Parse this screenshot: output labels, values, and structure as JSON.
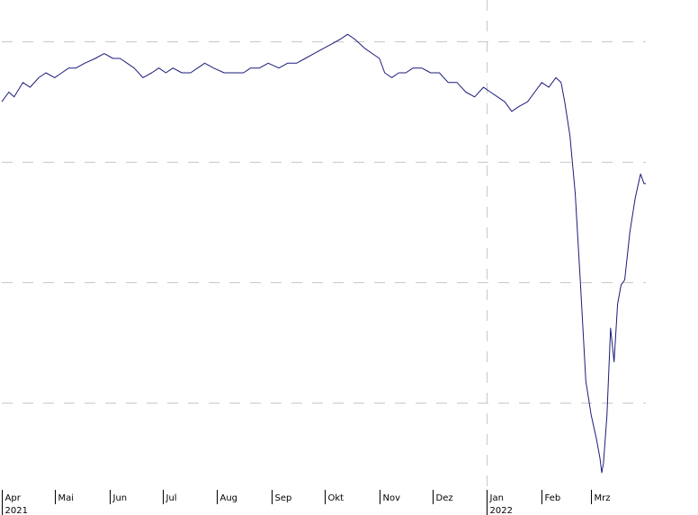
{
  "chart_data": {
    "type": "line",
    "title": "",
    "xlabel": "",
    "ylabel": "",
    "grid": true,
    "x_axis": {
      "ticks": [
        {
          "label": "Apr",
          "date": "2021-04-01"
        },
        {
          "label": "Mai",
          "date": "2021-05-01"
        },
        {
          "label": "Jun",
          "date": "2021-06-01"
        },
        {
          "label": "Jul",
          "date": "2021-07-01"
        },
        {
          "label": "Aug",
          "date": "2021-08-01"
        },
        {
          "label": "Sep",
          "date": "2021-09-01"
        },
        {
          "label": "Okt",
          "date": "2021-10-01"
        },
        {
          "label": "Nov",
          "date": "2021-11-01"
        },
        {
          "label": "Dez",
          "date": "2021-12-01"
        },
        {
          "label": "Jan",
          "date": "2022-01-01"
        },
        {
          "label": "Feb",
          "date": "2022-02-01"
        },
        {
          "label": "Mrz",
          "date": "2022-03-01"
        }
      ],
      "year_labels": [
        {
          "label": "2021",
          "date": "2021-04-01"
        },
        {
          "label": "2022",
          "date": "2022-01-01"
        }
      ],
      "range": [
        "2021-04-01",
        "2022-04-01"
      ]
    },
    "y_axis": {
      "labels_visible": false,
      "range": [
        0,
        100
      ],
      "gridlines": [
        17.5,
        42.5,
        67.5,
        92.5
      ]
    },
    "series": [
      {
        "color": "#1c1c7a",
        "x": [
          "2021-04-01",
          "2021-04-05",
          "2021-04-08",
          "2021-04-13",
          "2021-04-17",
          "2021-04-22",
          "2021-04-26",
          "2021-05-01",
          "2021-05-05",
          "2021-05-09",
          "2021-05-13",
          "2021-05-18",
          "2021-05-24",
          "2021-05-29",
          "2021-06-03",
          "2021-06-07",
          "2021-06-11",
          "2021-06-15",
          "2021-06-20",
          "2021-06-25",
          "2021-06-29",
          "2021-07-03",
          "2021-07-07",
          "2021-07-12",
          "2021-07-17",
          "2021-07-21",
          "2021-07-25",
          "2021-07-30",
          "2021-08-05",
          "2021-08-10",
          "2021-08-16",
          "2021-08-20",
          "2021-08-25",
          "2021-08-30",
          "2021-09-05",
          "2021-09-10",
          "2021-09-15",
          "2021-09-20",
          "2021-09-25",
          "2021-09-30",
          "2021-10-05",
          "2021-10-10",
          "2021-10-14",
          "2021-10-18",
          "2021-10-21",
          "2021-10-24",
          "2021-10-28",
          "2021-11-01",
          "2021-11-04",
          "2021-11-08",
          "2021-11-12",
          "2021-11-16",
          "2021-11-20",
          "2021-11-25",
          "2021-11-30",
          "2021-12-05",
          "2021-12-10",
          "2021-12-15",
          "2021-12-20",
          "2021-12-25",
          "2021-12-30",
          "2022-01-03",
          "2022-01-07",
          "2022-01-11",
          "2022-01-15",
          "2022-01-19",
          "2022-01-24",
          "2022-01-28",
          "2022-02-01",
          "2022-02-05",
          "2022-02-09",
          "2022-02-12",
          "2022-02-14",
          "2022-02-17",
          "2022-02-20",
          "2022-02-23",
          "2022-02-26",
          "2022-03-01",
          "2022-03-04",
          "2022-03-06",
          "2022-03-07",
          "2022-03-08",
          "2022-03-10",
          "2022-03-12",
          "2022-03-14",
          "2022-03-16",
          "2022-03-18",
          "2022-03-20",
          "2022-03-23",
          "2022-03-26",
          "2022-03-29",
          "2022-03-31",
          "2022-04-01"
        ],
        "y": [
          80,
          82,
          81,
          84,
          83,
          85,
          86,
          85,
          86,
          87,
          87,
          88,
          89,
          90,
          89,
          89,
          88,
          87,
          85,
          86,
          87,
          86,
          87,
          86,
          86,
          87,
          88,
          87,
          86,
          86,
          86,
          87,
          87,
          88,
          87,
          88,
          88,
          89,
          90,
          91,
          92,
          93,
          94,
          93,
          92,
          91,
          90,
          89,
          86,
          85,
          86,
          86,
          87,
          87,
          86,
          86,
          84,
          84,
          82,
          81,
          83,
          82,
          81,
          80,
          78,
          79,
          80,
          82,
          84,
          83,
          85,
          84,
          80,
          73,
          61,
          42,
          22,
          15,
          10,
          6,
          3,
          5,
          15,
          33,
          26,
          38,
          42,
          43,
          53,
          60,
          65,
          63,
          63
        ]
      }
    ]
  }
}
